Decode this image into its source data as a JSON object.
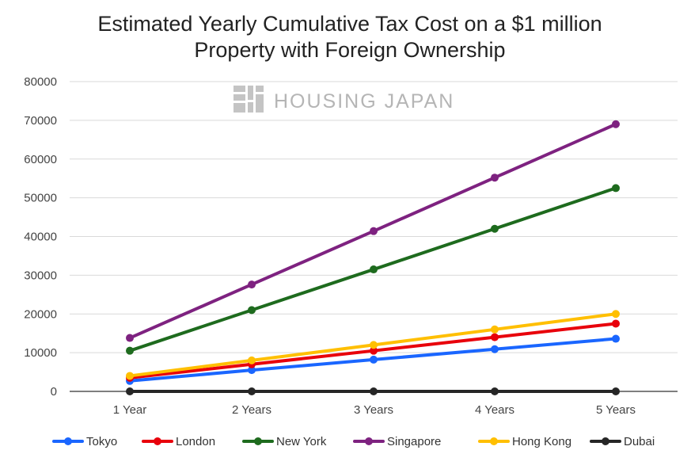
{
  "chart_data": {
    "type": "line",
    "title_lines": [
      "Estimated Yearly Cumulative Tax Cost on a $1 million",
      "Property with Foreign Ownership"
    ],
    "watermark": "HOUSING JAPAN",
    "categories": [
      "1 Year",
      "2 Years",
      "3 Years",
      "4 Years",
      "5 Years"
    ],
    "ylim": [
      0,
      80000
    ],
    "yticks": [
      "0",
      "10000",
      "20000",
      "30000",
      "40000",
      "50000",
      "60000",
      "70000",
      "80000"
    ],
    "grid": true,
    "legend_position": "bottom",
    "series": [
      {
        "name": "Tokyo",
        "color": "#1a66ff",
        "values": [
          2700,
          5500,
          8200,
          10900,
          13600
        ]
      },
      {
        "name": "London",
        "color": "#e8000b",
        "values": [
          3500,
          7000,
          10500,
          14000,
          17500
        ]
      },
      {
        "name": "New York",
        "color": "#1e6b1e",
        "values": [
          10500,
          21000,
          31500,
          42000,
          52500
        ]
      },
      {
        "name": "Singapore",
        "color": "#7e2280",
        "values": [
          13800,
          27600,
          41400,
          55200,
          69000
        ]
      },
      {
        "name": "Hong Kong",
        "color": "#ffbf00",
        "values": [
          4000,
          8000,
          12000,
          16000,
          20000
        ]
      },
      {
        "name": "Dubai",
        "color": "#262626",
        "values": [
          0,
          0,
          0,
          0,
          0
        ]
      }
    ]
  }
}
